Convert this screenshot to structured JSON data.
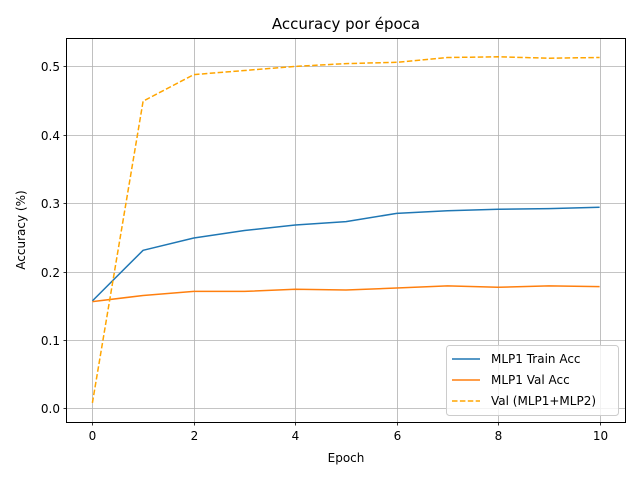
{
  "chart_data": {
    "type": "line",
    "title": "Accuracy por época",
    "xlabel": "Epoch",
    "ylabel": "Accuracy (%)",
    "xlim": [
      -0.5,
      10.5
    ],
    "ylim": [
      -0.02,
      0.54
    ],
    "xticks": [
      0,
      2,
      4,
      6,
      8,
      10
    ],
    "xtick_labels": [
      "0",
      "2",
      "4",
      "6",
      "8",
      "10"
    ],
    "yticks": [
      0.0,
      0.1,
      0.2,
      0.3,
      0.4,
      0.5
    ],
    "ytick_labels": [
      "0.0",
      "0.1",
      "0.2",
      "0.3",
      "0.4",
      "0.5"
    ],
    "grid": true,
    "legend_position": "lower-right",
    "x": [
      0,
      1,
      2,
      3,
      4,
      5,
      6,
      7,
      8,
      9,
      10
    ],
    "series": [
      {
        "name": "MLP1 Train Acc",
        "color": "#1f77b4",
        "style": "solid",
        "values": [
          0.157,
          0.231,
          0.249,
          0.26,
          0.268,
          0.273,
          0.285,
          0.289,
          0.291,
          0.292,
          0.294
        ]
      },
      {
        "name": "MLP1 Val Acc",
        "color": "#ff7f0e",
        "style": "solid",
        "values": [
          0.156,
          0.165,
          0.171,
          0.171,
          0.174,
          0.173,
          0.176,
          0.179,
          0.177,
          0.179,
          0.178
        ]
      },
      {
        "name": "Val (MLP1+MLP2)",
        "color": "#ffa500",
        "style": "dashed",
        "values": [
          0.008,
          0.449,
          0.488,
          0.494,
          0.5,
          0.504,
          0.506,
          0.513,
          0.514,
          0.512,
          0.513
        ]
      }
    ]
  }
}
